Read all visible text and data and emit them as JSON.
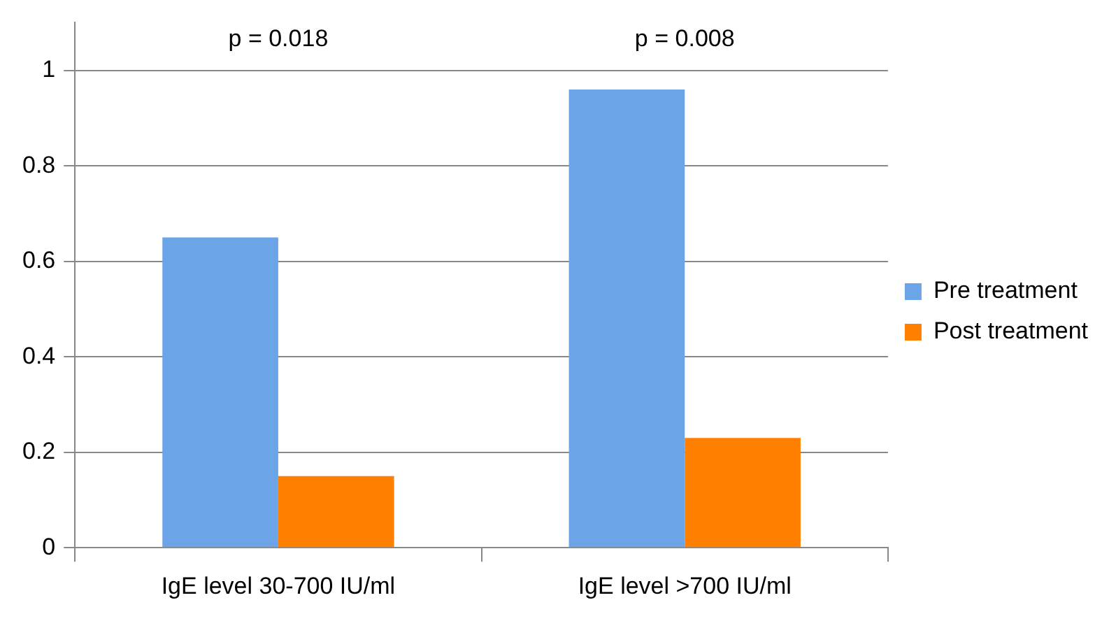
{
  "chart_data": {
    "type": "bar",
    "categories": [
      "IgE level 30-700 IU/ml",
      "IgE level >700 IU/ml"
    ],
    "series": [
      {
        "name": "Pre treatment",
        "color": "#6ca4e8",
        "values": [
          0.65,
          0.96
        ]
      },
      {
        "name": "Post treatment",
        "color": "#ff7f00",
        "values": [
          0.15,
          0.23
        ]
      }
    ],
    "ylim": [
      0,
      1.1
    ],
    "yticks": [
      0,
      0.2,
      0.4,
      0.6,
      0.8,
      1
    ],
    "grid": "y",
    "legend": "right",
    "annotations": [
      "p = 0.018",
      "p = 0.008"
    ]
  }
}
